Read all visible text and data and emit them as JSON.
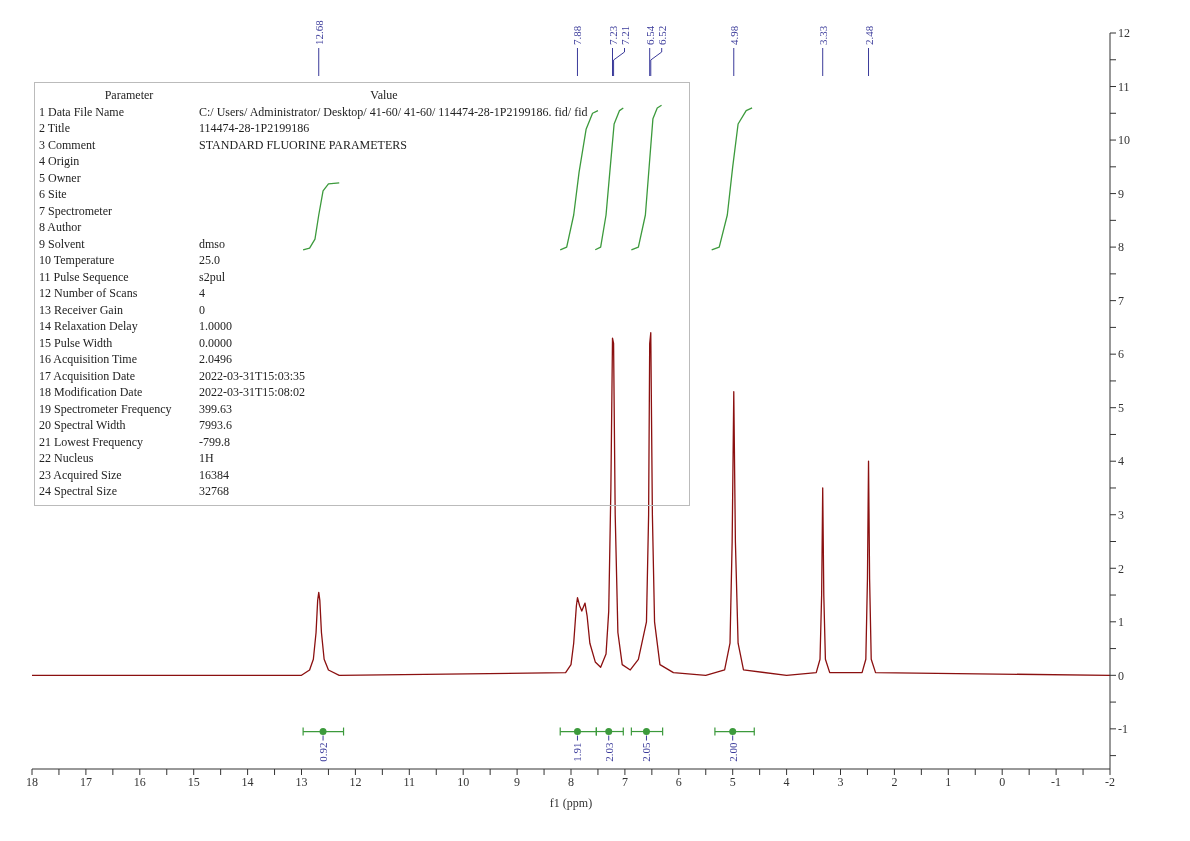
{
  "chart_data": {
    "type": "line",
    "xlabel": "f1 (ppm)",
    "xlim": [
      18,
      -2
    ],
    "ylim": [
      -1.75,
      12
    ],
    "xticks": [
      18,
      {
        "value": 17.5,
        "label": null
      },
      17,
      {
        "value": 16.5,
        "label": null
      },
      16,
      {
        "value": 15.5,
        "label": null
      },
      15,
      {
        "value": 14.5,
        "label": null
      },
      14,
      {
        "value": 13.5,
        "label": null
      },
      13,
      {
        "value": 12.5,
        "label": null
      },
      12,
      {
        "value": 11.5,
        "label": null
      },
      11,
      {
        "value": 10.5,
        "label": null
      },
      10,
      {
        "value": 9.5,
        "label": null
      },
      9,
      {
        "value": 8.5,
        "label": null
      },
      8,
      {
        "value": 7.5,
        "label": null
      },
      7,
      {
        "value": 6.5,
        "label": null
      },
      6,
      {
        "value": 5.5,
        "label": null
      },
      5,
      {
        "value": 4.5,
        "label": null
      },
      4,
      {
        "value": 3.5,
        "label": null
      },
      3,
      {
        "value": 2.5,
        "label": null
      },
      2,
      {
        "value": 1.5,
        "label": null
      },
      1,
      {
        "value": 0.5,
        "label": null
      },
      0,
      {
        "value": -0.5,
        "label": null
      },
      -1,
      {
        "value": -1.5,
        "label": null
      },
      -2
    ],
    "yticks": [
      {
        "value": -1.5,
        "label": null
      },
      -1,
      {
        "value": -0.5,
        "label": null
      },
      0,
      {
        "value": 0.5,
        "label": null
      },
      1,
      {
        "value": 1.5,
        "label": null
      },
      2,
      {
        "value": 2.5,
        "label": null
      },
      3,
      {
        "value": 3.5,
        "label": null
      },
      4,
      {
        "value": 4.5,
        "label": null
      },
      5,
      {
        "value": 5.5,
        "label": null
      },
      6,
      {
        "value": 6.5,
        "label": null
      },
      7,
      {
        "value": 7.5,
        "label": null
      },
      8,
      {
        "value": 8.5,
        "label": null
      },
      9,
      {
        "value": 9.5,
        "label": null
      },
      10,
      {
        "value": 10.5,
        "label": null
      },
      11,
      {
        "value": 11.5,
        "label": null
      },
      12
    ],
    "grid": false,
    "marker": "none",
    "line_style": "solid",
    "series": [
      {
        "color": "#8b1010",
        "x": [
          18,
          13.0,
          12.85,
          12.78,
          12.73,
          12.7,
          12.68,
          12.66,
          12.63,
          12.58,
          12.5,
          12.3,
          8.1,
          8.0,
          7.95,
          7.9,
          7.88,
          7.84,
          7.8,
          7.74,
          7.7,
          7.65,
          7.55,
          7.45,
          7.35,
          7.3,
          7.26,
          7.23,
          7.21,
          7.18,
          7.13,
          7.05,
          6.9,
          6.75,
          6.6,
          6.56,
          6.54,
          6.52,
          6.49,
          6.45,
          6.35,
          6.1,
          5.5,
          5.15,
          5.05,
          5.01,
          4.98,
          4.95,
          4.9,
          4.8,
          4.0,
          3.45,
          3.38,
          3.35,
          3.33,
          3.31,
          3.28,
          3.2,
          2.6,
          2.53,
          2.5,
          2.48,
          2.46,
          2.43,
          2.35,
          -2
        ],
        "values": [
          0,
          0,
          0.1,
          0.3,
          0.8,
          1.4,
          1.55,
          1.4,
          0.8,
          0.3,
          0.1,
          0,
          0.05,
          0.2,
          0.6,
          1.3,
          1.45,
          1.3,
          1.2,
          1.35,
          1.1,
          0.6,
          0.25,
          0.15,
          0.4,
          1.2,
          3.5,
          6.3,
          6.2,
          3.0,
          0.8,
          0.2,
          0.1,
          0.3,
          1.0,
          3.0,
          6.2,
          6.4,
          3.0,
          1.0,
          0.2,
          0.05,
          0,
          0.1,
          0.6,
          2.5,
          5.3,
          2.5,
          0.6,
          0.1,
          0,
          0.05,
          0.3,
          1.5,
          3.5,
          1.5,
          0.3,
          0.05,
          0.05,
          0.3,
          1.8,
          4.0,
          1.8,
          0.3,
          0.05,
          0
        ]
      },
      {
        "color": "#3c9a3c",
        "x": [
          12.97,
          12.85,
          12.75,
          12.68,
          12.6,
          12.5,
          12.3
        ],
        "values": [
          7.95,
          7.98,
          8.15,
          8.6,
          9.05,
          9.18,
          9.2
        ]
      },
      {
        "color": "#3c9a3c",
        "x": [
          8.2,
          8.08,
          7.95,
          7.85,
          7.72,
          7.6,
          7.5
        ],
        "values": [
          7.95,
          8.0,
          8.6,
          9.4,
          10.2,
          10.5,
          10.55
        ]
      },
      {
        "color": "#3c9a3c",
        "x": [
          7.55,
          7.45,
          7.35,
          7.28,
          7.2,
          7.1,
          7.03
        ],
        "values": [
          7.95,
          8.0,
          8.6,
          9.4,
          10.3,
          10.55,
          10.6
        ]
      },
      {
        "color": "#3c9a3c",
        "x": [
          6.88,
          6.75,
          6.62,
          6.55,
          6.48,
          6.4,
          6.32
        ],
        "values": [
          7.95,
          8.0,
          8.6,
          9.5,
          10.4,
          10.6,
          10.65
        ]
      },
      {
        "color": "#3c9a3c",
        "x": [
          5.39,
          5.25,
          5.1,
          5.0,
          4.9,
          4.75,
          4.64
        ],
        "values": [
          7.95,
          8.0,
          8.6,
          9.5,
          10.3,
          10.55,
          10.6
        ]
      },
      {
        "type": "scatter",
        "marker": "circle",
        "color": "#3c9a3c",
        "x": [
          12.6,
          7.88,
          7.3,
          6.6,
          5.0
        ],
        "values": [
          -1.05,
          -1.05,
          -1.05,
          -1.05,
          -1.05
        ],
        "xerrors": [
          [
            12.22,
            12.97
          ],
          [
            7.53,
            8.2
          ],
          [
            7.03,
            7.53
          ],
          [
            6.3,
            6.88
          ],
          [
            4.6,
            5.33
          ]
        ]
      }
    ],
    "annotations": [
      "Parameter\tValue",
      "1 Data File Name\tC:/ Users/ Administrator/ Desktop/ 41-60/ 41-60/ 114474-28-1P2199186. fid/ fid",
      "2 Title\t114474-28-1P2199186",
      "3 Comment\tSTANDARD FLUORINE PARAMETERS",
      "4 Origin",
      "5 Owner",
      "6 Site",
      "7 Spectrometer",
      "8 Author",
      "9 Solvent\tdmso",
      "10 Temperature\t25.0",
      "11 Pulse Sequence\ts2pul",
      "12 Number of Scans\t4",
      "13 Receiver Gain\t0",
      "14 Relaxation Delay\t1.0000",
      "15 Pulse Width\t0.0000",
      "16 Acquisition Time\t2.0496",
      "17 Acquisition Date\t2022-03-31T15:03:35",
      "18 Modification Date\t2022-03-31T15:08:02",
      "19 Spectrometer Frequency\t399.63",
      "20 Spectral Width\t7993.6",
      "21 Lowest Frequency\t-799.8",
      "22 Nucleus\t1H",
      "23 Acquired Size\t16384",
      "24 Spectral Size\t32768",
      {
        "text": "12.68",
        "x": 12.68
      },
      {
        "text": "7.88",
        "x": 7.88
      },
      {
        "text": "7.23",
        "x": 7.23
      },
      {
        "text": "7.21",
        "x": 7.21
      },
      {
        "text": "6.54",
        "x": 6.54
      },
      {
        "text": "6.52",
        "x": 6.52
      },
      {
        "text": "4.98",
        "x": 4.98
      },
      {
        "text": "3.33",
        "x": 3.33
      },
      {
        "text": "2.48",
        "x": 2.48
      },
      {
        "text": "0.92",
        "x": 12.6,
        "y": -1.05
      },
      {
        "text": "1.91",
        "x": 7.88,
        "y": -1.05
      },
      {
        "text": "2.03",
        "x": 7.3,
        "y": -1.05
      },
      {
        "text": "2.05",
        "x": 6.6,
        "y": -1.05
      },
      {
        "text": "2.00",
        "x": 5.0,
        "y": -1.05
      }
    ]
  }
}
